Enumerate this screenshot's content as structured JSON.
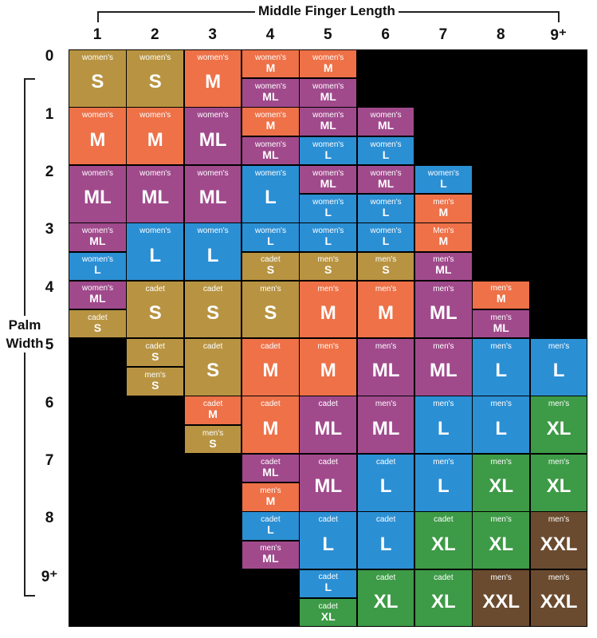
{
  "x_title": "Middle Finger Length",
  "y_title_line1": "Palm",
  "y_title_line2": "Width",
  "columns": [
    "1",
    "2",
    "3",
    "4",
    "5",
    "6",
    "7",
    "8",
    "9⁺"
  ],
  "rows": [
    "0",
    "1",
    "2",
    "3",
    "4",
    "5",
    "6",
    "7",
    "8",
    "9⁺"
  ],
  "colors": {
    "S": "#b89442",
    "M": "#ee7148",
    "ML": "#a04a8c",
    "L": "#2b8fd4",
    "XL": "#3d9a46",
    "XXL": "#6b4b2f",
    "empty": "#000000",
    "grid": "#000000"
  },
  "chart_data": {
    "type": "table",
    "title": "",
    "xlabel": "Middle Finger Length",
    "ylabel": "Palm Width",
    "columns": [
      "1",
      "2",
      "3",
      "4",
      "5",
      "6",
      "7",
      "8",
      "9⁺"
    ],
    "rows": [
      "0",
      "1",
      "2",
      "3",
      "4",
      "5",
      "6",
      "7",
      "8",
      "9⁺"
    ],
    "cells": [
      [
        [
          [
            "women's",
            "S"
          ]
        ],
        [
          [
            "women's",
            "S"
          ]
        ],
        [
          [
            "women's",
            "M"
          ]
        ],
        [
          [
            "women's",
            "M"
          ],
          [
            "women's",
            "ML"
          ]
        ],
        [
          [
            "women's",
            "M"
          ],
          [
            "women's",
            "ML"
          ]
        ],
        [],
        [],
        [],
        []
      ],
      [
        [
          [
            "women's",
            "M"
          ]
        ],
        [
          [
            "women's",
            "M"
          ]
        ],
        [
          [
            "women's",
            "ML"
          ]
        ],
        [
          [
            "women's",
            "M"
          ],
          [
            "women's",
            "ML"
          ]
        ],
        [
          [
            "women's",
            "ML"
          ],
          [
            "women's",
            "L"
          ]
        ],
        [
          [
            "women's",
            "ML"
          ],
          [
            "women's",
            "L"
          ]
        ],
        [],
        [],
        []
      ],
      [
        [
          [
            "women's",
            "ML"
          ]
        ],
        [
          [
            "women's",
            "ML"
          ]
        ],
        [
          [
            "women's",
            "ML"
          ]
        ],
        [
          [
            "women's",
            "L"
          ]
        ],
        [
          [
            "women's",
            "ML"
          ],
          [
            "women's",
            "L"
          ]
        ],
        [
          [
            "women's",
            "ML"
          ],
          [
            "women's",
            "L"
          ]
        ],
        [
          [
            "women's",
            "L"
          ],
          [
            "men's",
            "M"
          ]
        ],
        [],
        []
      ],
      [
        [
          [
            "women's",
            "ML"
          ],
          [
            "women's",
            "L"
          ]
        ],
        [
          [
            "women's",
            "L"
          ]
        ],
        [
          [
            "women's",
            "L"
          ]
        ],
        [
          [
            "women's",
            "L"
          ],
          [
            "cadet",
            "S"
          ]
        ],
        [
          [
            "women's",
            "L"
          ],
          [
            "men's",
            "S"
          ]
        ],
        [
          [
            "women's",
            "L"
          ],
          [
            "men's",
            "S"
          ]
        ],
        [
          [
            "Men's",
            "M"
          ],
          [
            "men's",
            "ML"
          ]
        ],
        [],
        []
      ],
      [
        [
          [
            "women's",
            "ML"
          ],
          [
            "cadet",
            "S"
          ]
        ],
        [
          [
            "cadet",
            "S"
          ]
        ],
        [
          [
            "cadet",
            "S"
          ]
        ],
        [
          [
            "men's",
            "S"
          ]
        ],
        [
          [
            "men's",
            "M"
          ]
        ],
        [
          [
            "men's",
            "M"
          ]
        ],
        [
          [
            "men's",
            "ML"
          ]
        ],
        [
          [
            "men's",
            "M"
          ],
          [
            "men's",
            "ML"
          ]
        ],
        []
      ],
      [
        [],
        [
          [
            "cadet",
            "S"
          ],
          [
            "men's",
            "S"
          ]
        ],
        [
          [
            "cadet",
            "S"
          ]
        ],
        [
          [
            "cadet",
            "M"
          ]
        ],
        [
          [
            "men's",
            "M"
          ]
        ],
        [
          [
            "men's",
            "ML"
          ]
        ],
        [
          [
            "men's",
            "ML"
          ]
        ],
        [
          [
            "men's",
            "L"
          ]
        ],
        [
          [
            "men's",
            "L"
          ]
        ]
      ],
      [
        [],
        [],
        [
          [
            "cadet",
            "M"
          ],
          [
            "men's",
            "S"
          ]
        ],
        [
          [
            "cadet",
            "M"
          ]
        ],
        [
          [
            "cadet",
            "ML"
          ]
        ],
        [
          [
            "men's",
            "ML"
          ]
        ],
        [
          [
            "men's",
            "L"
          ]
        ],
        [
          [
            "men's",
            "L"
          ]
        ],
        [
          [
            "men's",
            "XL"
          ]
        ]
      ],
      [
        [],
        [],
        [],
        [
          [
            "cadet",
            "ML"
          ],
          [
            "men's",
            "M"
          ]
        ],
        [
          [
            "cadet",
            "ML"
          ]
        ],
        [
          [
            "cadet",
            "L"
          ]
        ],
        [
          [
            "men's",
            "L"
          ]
        ],
        [
          [
            "men's",
            "XL"
          ]
        ],
        [
          [
            "men's",
            "XL"
          ]
        ]
      ],
      [
        [],
        [],
        [],
        [
          [
            "cadet",
            "L"
          ],
          [
            "men's",
            "ML"
          ]
        ],
        [
          [
            "cadet",
            "L"
          ]
        ],
        [
          [
            "cadet",
            "L"
          ]
        ],
        [
          [
            "cadet",
            "XL"
          ]
        ],
        [
          [
            "men's",
            "XL"
          ]
        ],
        [
          [
            "men's",
            "XXL"
          ]
        ]
      ],
      [
        [],
        [],
        [],
        [],
        [
          [
            "cadet",
            "L"
          ],
          [
            "cadet",
            "XL"
          ]
        ],
        [
          [
            "cadet",
            "XL"
          ]
        ],
        [
          [
            "cadet",
            "XL"
          ]
        ],
        [
          [
            "men's",
            "XXL"
          ]
        ],
        [
          [
            "men's",
            "XXL"
          ]
        ]
      ]
    ]
  }
}
